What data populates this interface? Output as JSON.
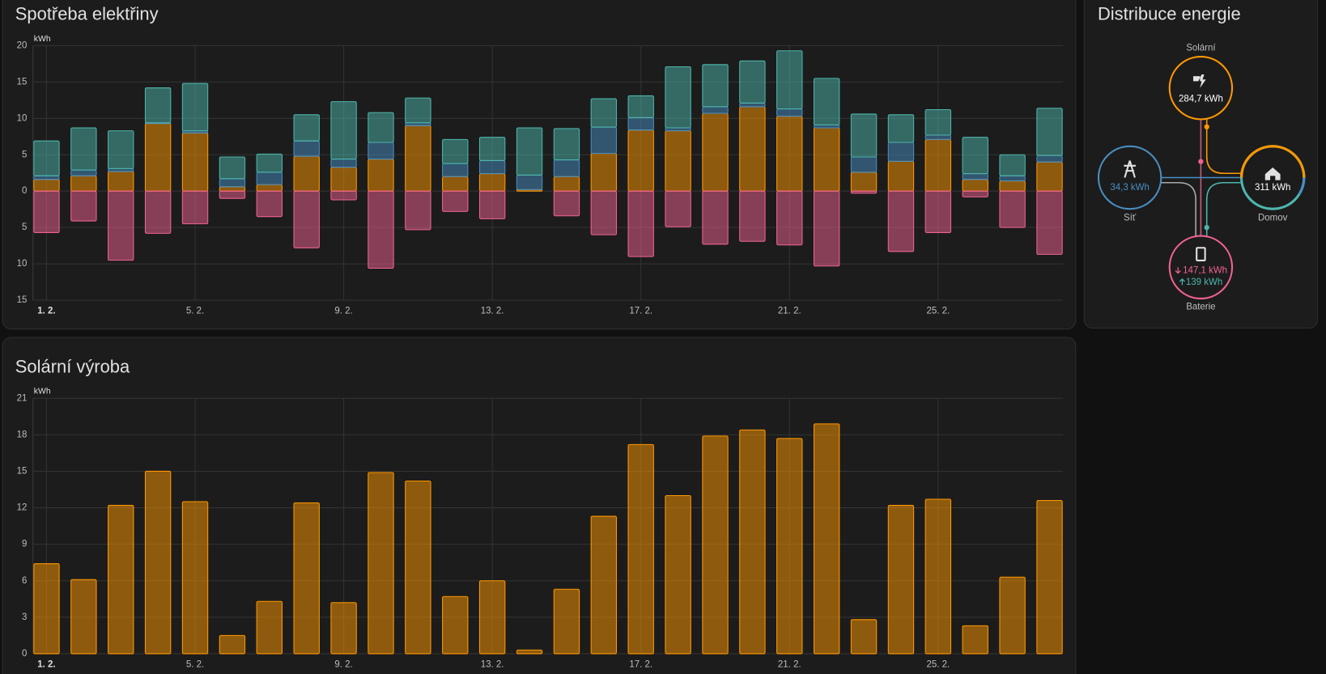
{
  "chart_data": [
    {
      "type": "bar",
      "title": "Spotřeba elektřiny",
      "y_unit": "kWh",
      "stacked": true,
      "grid": true,
      "categories": [
        "1. 2.",
        null,
        null,
        null,
        "5. 2.",
        null,
        null,
        null,
        "9. 2.",
        null,
        null,
        null,
        "13. 2.",
        null,
        null,
        null,
        "17. 2.",
        null,
        null,
        null,
        "21. 2.",
        null,
        null,
        null,
        "25. 2.",
        null,
        null,
        null
      ],
      "series": [
        {
          "color": "#ff9800",
          "values": [
            1.6,
            2.1,
            2.7,
            9.3,
            8.0,
            0.6,
            0.9,
            4.8,
            3.3,
            4.4,
            9.0,
            2.0,
            2.4,
            0.2,
            2.0,
            5.2,
            8.4,
            8.3,
            10.7,
            11.6,
            10.3,
            8.7,
            2.6,
            4.1,
            7.1,
            1.6,
            1.4,
            4.0
          ]
        },
        {
          "color": "#488fc2",
          "values": [
            0.5,
            0.8,
            0.4,
            0.1,
            0.3,
            1.1,
            1.7,
            2.1,
            1.1,
            2.3,
            0.4,
            1.8,
            1.8,
            2.0,
            2.3,
            3.6,
            1.7,
            0.4,
            0.9,
            0.5,
            1.0,
            0.4,
            2.1,
            2.6,
            0.6,
            0.8,
            0.7,
            0.9
          ]
        },
        {
          "color": "#4db6ac",
          "values": [
            4.8,
            5.8,
            5.2,
            4.8,
            6.5,
            3.0,
            2.5,
            3.6,
            7.9,
            4.1,
            3.4,
            3.3,
            3.2,
            6.5,
            4.3,
            3.9,
            3.0,
            8.4,
            5.8,
            5.8,
            8.0,
            6.4,
            5.9,
            3.8,
            3.5,
            5.0,
            2.9,
            6.5
          ]
        },
        {
          "color": "#f06292",
          "values": [
            -5.7,
            -4.1,
            -9.5,
            -5.8,
            -4.5,
            -1.0,
            -3.5,
            -7.8,
            -1.2,
            -10.6,
            -5.3,
            -2.8,
            -3.8,
            0,
            -3.4,
            -6.0,
            -9.0,
            -4.9,
            -7.3,
            -6.9,
            -7.4,
            -10.3,
            -0.3,
            -8.3,
            -5.7,
            -0.8,
            -5.0,
            -8.7
          ]
        }
      ],
      "ylim": [
        -15,
        20
      ],
      "yticks": [
        20,
        15,
        10,
        5,
        0,
        {
          "value": -5,
          "label": "5"
        },
        {
          "value": -10,
          "label": "10"
        },
        {
          "value": -15,
          "label": "15"
        }
      ]
    },
    {
      "type": "bar",
      "title": "Solární výroba",
      "y_unit": "kWh",
      "grid": true,
      "categories": [
        "1. 2.",
        null,
        null,
        null,
        "5. 2.",
        null,
        null,
        null,
        "9. 2.",
        null,
        null,
        null,
        "13. 2.",
        null,
        null,
        null,
        "17. 2.",
        null,
        null,
        null,
        "21. 2.",
        null,
        null,
        null,
        "25. 2.",
        null,
        null,
        null
      ],
      "series": [
        {
          "color": "#ff9800",
          "values": [
            7.4,
            6.1,
            12.2,
            15.0,
            12.5,
            1.5,
            4.3,
            12.4,
            4.2,
            14.9,
            14.2,
            4.7,
            6.0,
            0.3,
            5.3,
            11.3,
            17.2,
            13.0,
            17.9,
            18.4,
            17.7,
            18.9,
            2.8,
            12.2,
            12.7,
            2.3,
            6.3,
            12.6
          ]
        }
      ],
      "ylim": [
        0,
        21
      ],
      "yticks": [
        0,
        3,
        6,
        9,
        12,
        15,
        18,
        21
      ]
    }
  ],
  "distribution": {
    "title": "Distribuce energie",
    "solar": {
      "label": "Solární",
      "value": "284,7 kWh"
    },
    "grid": {
      "label": "Síť",
      "value": "34,3 kWh"
    },
    "home": {
      "label": "Domov",
      "value": "311 kWh"
    },
    "battery": {
      "label": "Baterie",
      "in": "147,1 kWh",
      "out": "139 kWh"
    }
  }
}
